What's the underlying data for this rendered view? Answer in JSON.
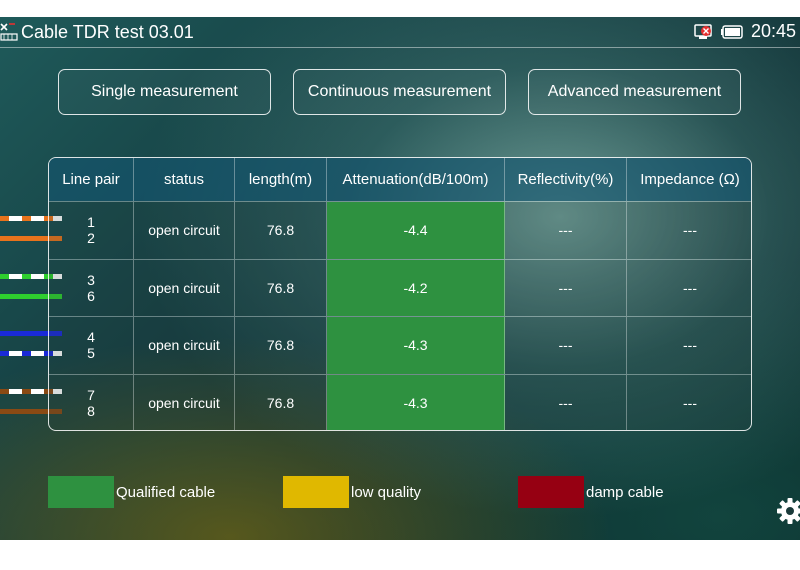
{
  "statusbar": {
    "title": "Cable TDR test 03.01",
    "time": "20:45",
    "icons": [
      "app-logo-icon",
      "network-error-icon",
      "battery-icon"
    ]
  },
  "modes": {
    "single": "Single measurement",
    "continuous": "Continuous measurement",
    "advanced": "Advanced measurement"
  },
  "table": {
    "headers": [
      "Line pair",
      "status",
      "length(m)",
      "Attenuation(dB/100m)",
      "Reflectivity(%)",
      "Impedance (Ω)"
    ],
    "rows": [
      {
        "pair_a": "1",
        "pair_b": "2",
        "status": "open circuit",
        "length": "76.8",
        "attenuation": "-4.4",
        "reflectivity": "---",
        "impedance": "---"
      },
      {
        "pair_a": "3",
        "pair_b": "6",
        "status": "open circuit",
        "length": "76.8",
        "attenuation": "-4.2",
        "reflectivity": "---",
        "impedance": "---"
      },
      {
        "pair_a": "4",
        "pair_b": "5",
        "status": "open circuit",
        "length": "76.8",
        "attenuation": "-4.3",
        "reflectivity": "---",
        "impedance": "---"
      },
      {
        "pair_a": "7",
        "pair_b": "8",
        "status": "open circuit",
        "length": "76.8",
        "attenuation": "-4.3",
        "reflectivity": "---",
        "impedance": "---"
      }
    ]
  },
  "wire_colors": [
    "#e8731c",
    "#2ecf2e",
    "#1a2ad8",
    "#8a4a14"
  ],
  "legend": {
    "qualified": {
      "label": "Qualified cable",
      "color": "#2e9140"
    },
    "low": {
      "label": "low quality",
      "color": "#e0b800"
    },
    "damp": {
      "label": "damp cable",
      "color": "#960012"
    }
  }
}
